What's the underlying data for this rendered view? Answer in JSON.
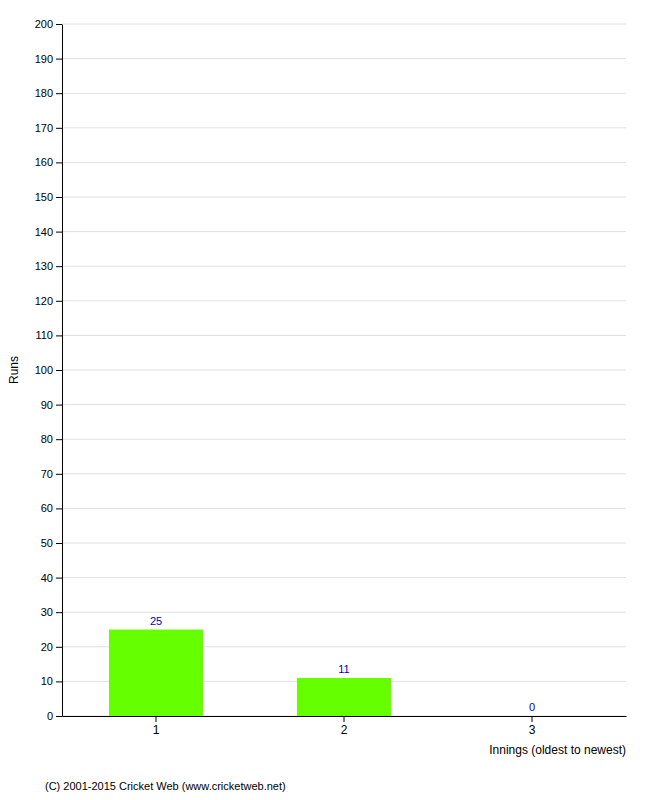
{
  "chart_data": {
    "type": "bar",
    "xlabel": "Innings (oldest to newest)",
    "ylabel": "Runs",
    "categories": [
      "1",
      "2",
      "3"
    ],
    "values": [
      25,
      11,
      0
    ],
    "color": "#66ff00",
    "ylim": [
      0,
      200
    ],
    "yticks": [
      0,
      10,
      20,
      30,
      40,
      50,
      60,
      70,
      80,
      90,
      100,
      110,
      120,
      130,
      140,
      150,
      160,
      170,
      180,
      190,
      200
    ],
    "grid": true,
    "data_labels": true,
    "annotations": [
      "(C) 2001-2015 Cricket Web (www.cricketweb.net)"
    ]
  }
}
